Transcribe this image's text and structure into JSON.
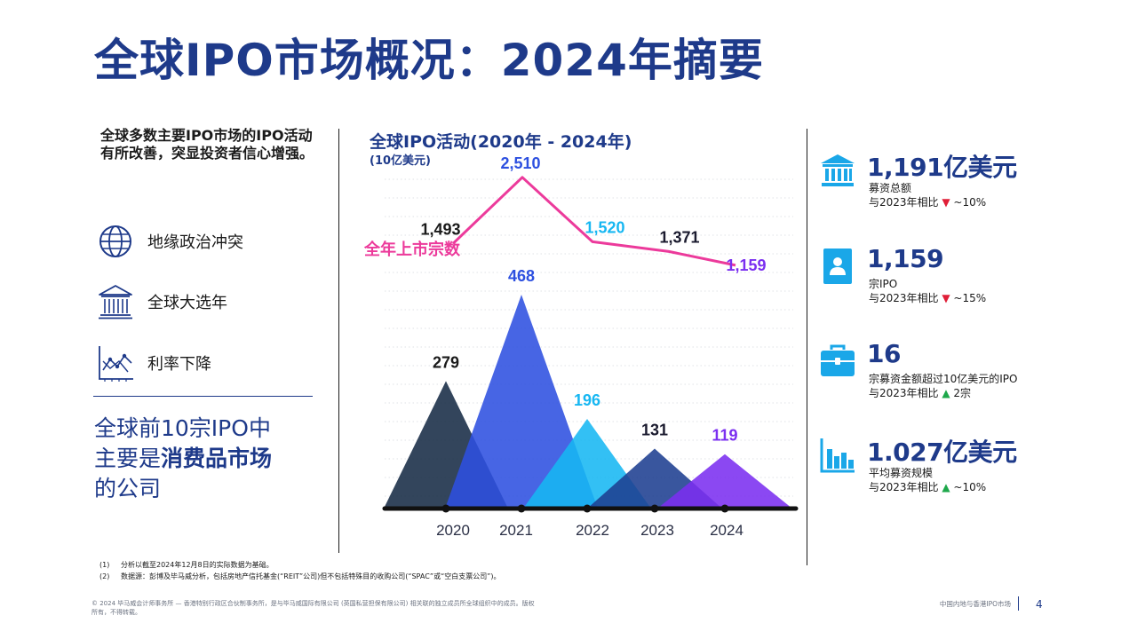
{
  "title": "全球IPO市场概况：2024年摘要",
  "intro": "全球多数主要IPO市场的IPO活动有所改善，突显投资者信心增强。",
  "drivers": [
    {
      "label": "地缘政治冲突",
      "icon": "globe-icon"
    },
    {
      "label": "全球大选年",
      "icon": "government-building-icon"
    },
    {
      "label": "利率下降",
      "icon": "trend-down-chart-icon"
    }
  ],
  "consumer": {
    "line1": "全球前10宗IPO中",
    "line2_prefix": "主要是",
    "line2_bold": "消费品市场",
    "line3": "的公司"
  },
  "chart_data": {
    "type": "area",
    "title": "全球IPO活动(2020年 - 2024年)",
    "subtitle": "(10亿美元)",
    "categories": [
      "2020",
      "2021",
      "2022",
      "2023",
      "2024"
    ],
    "series": [
      {
        "name": "募资总额(10亿美元)",
        "values": [
          279,
          468,
          196,
          131,
          119
        ],
        "value_labels": [
          "279",
          "468",
          "196",
          "131",
          "119"
        ],
        "colors": [
          "#172b45",
          "#2d50e0",
          "#17b7f2",
          "#1e3f91",
          "#7b2ff0"
        ],
        "label_colors": [
          "#1a1a1a",
          "#2d50e0",
          "#17b7f2",
          "#1a1a2e",
          "#7b2ff0"
        ]
      },
      {
        "name": "全年上市宗数",
        "values": [
          1493,
          2510,
          1520,
          1371,
          1159
        ],
        "value_labels": [
          "1,493",
          "2,510",
          "1,520",
          "1,371",
          "1,159"
        ],
        "line_color": "#ec3a9b",
        "label_colors": [
          "#1a1a1a",
          "#2d50e0",
          "#17b7f2",
          "#1a1a2e",
          "#7b2ff0"
        ]
      }
    ],
    "line_label": "全年上市宗数"
  },
  "stats": [
    {
      "icon": "bank-icon",
      "big": "1,191亿美元",
      "line1": "募资总额",
      "line2_prefix": "与2023年相比",
      "arrow": "▼",
      "arrow_dir": "down",
      "line2_suffix": " ~10%"
    },
    {
      "icon": "id-card-icon",
      "big": "1,159",
      "line1": "宗IPO",
      "line2_prefix": "与2023年相比",
      "arrow": "▼",
      "arrow_dir": "down",
      "line2_suffix": " ~15%"
    },
    {
      "icon": "briefcase-icon",
      "big": "16",
      "line1": "宗募资金额超过10亿美元的IPO",
      "line2_prefix": "与2023年相比",
      "arrow": "▲",
      "arrow_dir": "up",
      "line2_suffix": " 2宗"
    },
    {
      "icon": "bar-chart-icon",
      "big": "1.027亿美元",
      "line1": "平均募资规模",
      "line2_prefix": "与2023年相比",
      "arrow": "▲",
      "arrow_dir": "up",
      "line2_suffix": " ~10%"
    }
  ],
  "notes": [
    {
      "num": "(1)",
      "text": "分析以截至2024年12月8日的实际数据为基础。"
    },
    {
      "num": "(2)",
      "text": "数据源：彭博及毕马威分析，包括房地产信托基金(“REIT”公司)但不包括特殊目的收购公司(“SPAC”或“空白支票公司”)。"
    }
  ],
  "copyright": "© 2024 毕马威会计师事务所 — 香港特别行政区合伙制事务所，是与毕马威国际有限公司 (英国私营担保有限公司) 相关联的独立成员所全球组织中的成员。版权所有，不得转载。",
  "footer_title": "中国内地与香港IPO市场",
  "page_number": "4",
  "colors": {
    "brand": "#1e3a8a",
    "pink": "#ec3a9b",
    "down": "#e01e37",
    "up": "#1ea84b"
  }
}
